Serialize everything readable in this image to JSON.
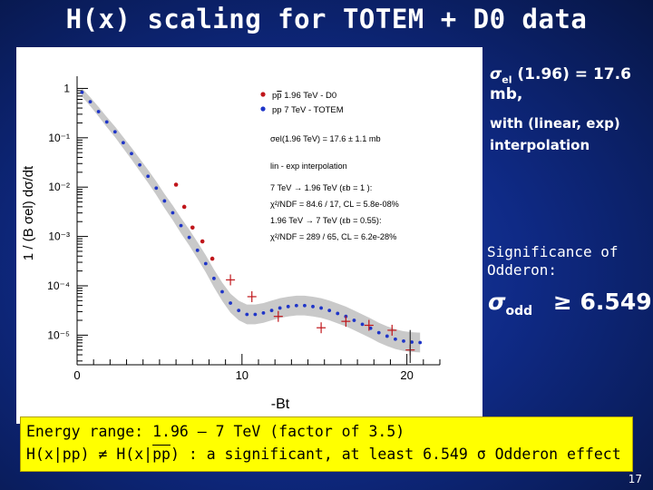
{
  "slide": {
    "title": "H(x) scaling for TOTEM + D0 data",
    "page_number": "17"
  },
  "side": {
    "sigma_el_line": "σel (1.96) = 17.6 mb,",
    "sigma_sym": "σ",
    "sigma_sub": "el",
    "sigma_rest": " (1.96) = 17.6 mb,",
    "interp_line1": "with (linear, exp)",
    "interp_line2": "interpolation",
    "significance_label": "Significance of Odderon:",
    "odd_sym": "σ",
    "odd_sub": "odd",
    "odd_value": "≥ 6.549"
  },
  "bottom_box": {
    "line1": "Energy range: 1.96 – 7 TeV (factor of 3.5)",
    "line2_a": "H(x|pp) ≠ H(x|",
    "line2_bar": "pp",
    "line2_b": ") : a significant, at least 6.549 σ Odderon effect"
  },
  "colors": {
    "d0": "#c0161b",
    "totem": "#1f35c8",
    "band": "#c9c9c9",
    "highlight": "#ffff00",
    "bg": "#0f2a86"
  },
  "chart_data": {
    "type": "scatter",
    "title": "",
    "xlabel": "-Bt",
    "ylabel": "1 / (B σel) dσ/dt",
    "xlim": [
      0,
      22
    ],
    "ylim_log10": [
      -5.6,
      0.1
    ],
    "log_y": true,
    "x_ticks": [
      0,
      10,
      20
    ],
    "x_tick_labels": [
      "0",
      "10",
      "20"
    ],
    "y_ticks_log10": [
      0,
      -1,
      -2,
      -3,
      -4,
      -5
    ],
    "y_tick_labels": [
      "1",
      "10⁻¹",
      "10⁻²",
      "10⁻³",
      "10⁻⁴",
      "10⁻⁵"
    ],
    "legend": {
      "position": "top-right",
      "entries": [
        {
          "label": "pp 1.96 TeV - D0",
          "prefix": "p",
          "bar": "p",
          "rest": " 1.96 TeV - D0",
          "color": "#c0161b"
        },
        {
          "label": "pp 7 TeV - TOTEM",
          "prefix": "pp",
          "bar": "",
          "rest": " 7 TeV - TOTEM",
          "color": "#1f35c8"
        }
      ],
      "text_lines": [
        "σel(1.96 TeV) = 17.6 ± 1.1 mb",
        "lin - exp interpolation",
        "7 TeV → 1.96 TeV (εb = 1 ):",
        "χ²/NDF = 84.6 / 17,  CL = 5.8e-08%",
        "1.96 TeV → 7 TeV (εb = 0.55):",
        "χ²/NDF = 289 / 65,  CL = 6.2e-28%"
      ]
    },
    "series": [
      {
        "name": "pp 7 TeV - TOTEM",
        "marker": "dot",
        "x": [
          0.3,
          0.8,
          1.3,
          1.8,
          2.3,
          2.8,
          3.3,
          3.8,
          4.3,
          4.8,
          5.3,
          5.8,
          6.3,
          6.8,
          7.3,
          7.8,
          8.3,
          8.8,
          9.3,
          9.8,
          10.3,
          10.8,
          11.3,
          11.8,
          12.3,
          12.8,
          13.3,
          13.8,
          14.3,
          14.8,
          15.3,
          15.8,
          16.3,
          16.8,
          17.3,
          17.8,
          18.3,
          18.8,
          19.3,
          19.8,
          20.3,
          20.8
        ],
        "log10_y": [
          -0.08,
          -0.27,
          -0.47,
          -0.68,
          -0.88,
          -1.1,
          -1.32,
          -1.55,
          -1.78,
          -2.02,
          -2.28,
          -2.52,
          -2.78,
          -3.02,
          -3.28,
          -3.55,
          -3.85,
          -4.12,
          -4.35,
          -4.5,
          -4.58,
          -4.58,
          -4.55,
          -4.5,
          -4.45,
          -4.42,
          -4.4,
          -4.4,
          -4.42,
          -4.45,
          -4.5,
          -4.56,
          -4.62,
          -4.7,
          -4.78,
          -4.86,
          -4.95,
          -5.02,
          -5.08,
          -5.12,
          -5.14,
          -5.15
        ]
      },
      {
        "name": "pp 1.96 TeV - D0",
        "marker": "point-with-error",
        "x": [
          6.0,
          6.5,
          7.0,
          7.6,
          8.2,
          9.3,
          10.6,
          12.2,
          14.8,
          16.3,
          17.7,
          19.1,
          20.2
        ],
        "log10_y": [
          -1.95,
          -2.4,
          -2.82,
          -3.1,
          -3.45,
          -3.88,
          -4.22,
          -4.62,
          -4.85,
          -4.72,
          -4.8,
          -4.9,
          -5.3
        ]
      }
    ]
  }
}
